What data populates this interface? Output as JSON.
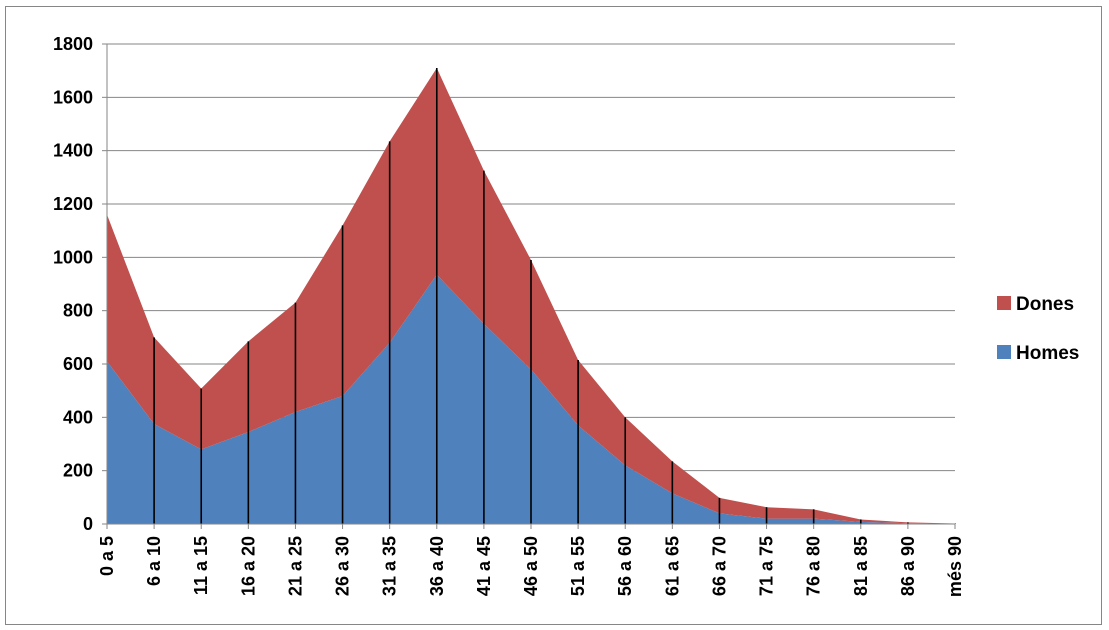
{
  "chart_data": {
    "type": "area",
    "stacked": true,
    "categories": [
      "0 a 5",
      "6 a 10",
      "11 a 15",
      "16 a 20",
      "21 a 25",
      "26 a 30",
      "31 a 35",
      "36 a 40",
      "41 a 45",
      "46 a 50",
      "51 a 55",
      "56 a 60",
      "61 a 65",
      "66 a 70",
      "71 a 75",
      "76 a 80",
      "81 a 85",
      "86 a 90",
      "més 90"
    ],
    "series": [
      {
        "name": "Homes",
        "color": "#4F81BD",
        "values": [
          610,
          375,
          280,
          345,
          420,
          480,
          680,
          935,
          750,
          580,
          370,
          220,
          115,
          40,
          20,
          20,
          8,
          3,
          1
        ]
      },
      {
        "name": "Dones",
        "color": "#C0504D",
        "values": [
          550,
          325,
          228,
          340,
          410,
          640,
          755,
          775,
          575,
          410,
          245,
          180,
          120,
          58,
          43,
          35,
          9,
          3,
          1
        ]
      }
    ],
    "ylim": [
      0,
      1800
    ],
    "yticks": [
      0,
      200,
      400,
      600,
      800,
      1000,
      1200,
      1400,
      1600,
      1800
    ],
    "gridlines": true,
    "drop_lines": true,
    "legend": {
      "position": "right",
      "entries": [
        "Dones",
        "Homes"
      ]
    }
  }
}
